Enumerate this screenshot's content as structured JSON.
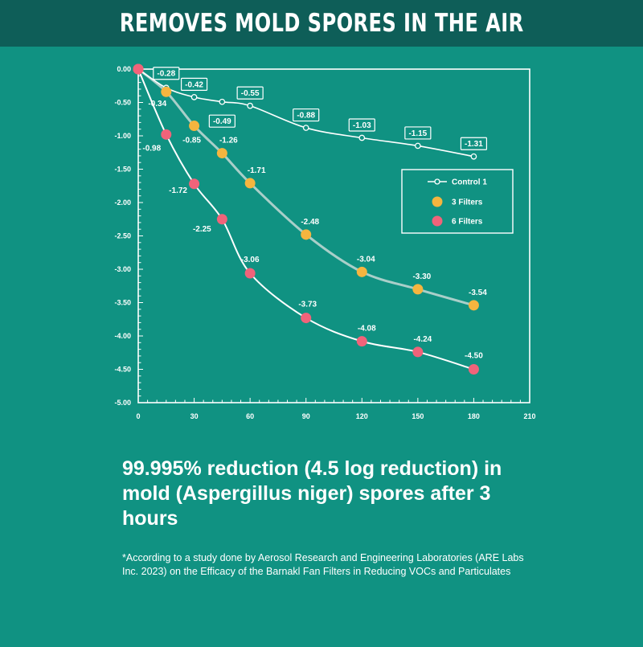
{
  "banner": {
    "title": "REMOVES MOLD SPORES IN THE AIR"
  },
  "chart_data": {
    "type": "line",
    "title": "",
    "xlabel": "",
    "ylabel": "",
    "xlim": [
      0,
      210
    ],
    "ylim": [
      -5.0,
      0.0
    ],
    "x_ticks": [
      0,
      30,
      60,
      90,
      120,
      150,
      180,
      210
    ],
    "y_ticks": [
      0.0,
      -0.5,
      -1.0,
      -1.5,
      -2.0,
      -2.5,
      -3.0,
      -3.5,
      -4.0,
      -4.5,
      -5.0
    ],
    "y_tick_labels": [
      "0.00",
      "-0.50",
      "-1.00",
      "-1.50",
      "-2.00",
      "-2.50",
      "-3.00",
      "-3.50",
      "-4.00",
      "-4.50",
      "-5.00"
    ],
    "legend_position": "right",
    "series": [
      {
        "name": "Control 1",
        "color": "#ffffff",
        "marker": "open-circle",
        "x": [
          0,
          15,
          30,
          45,
          60,
          90,
          120,
          150,
          180
        ],
        "y": [
          0.0,
          -0.28,
          -0.42,
          -0.49,
          -0.55,
          -0.88,
          -1.03,
          -1.15,
          -1.31
        ],
        "labels": [
          "",
          "-0.28",
          "-0.42",
          "-0.49",
          "-0.55",
          "-0.88",
          "-1.03",
          "-1.15",
          "-1.31"
        ]
      },
      {
        "name": "3 Filters",
        "color": "#f5b53f",
        "marker": "filled-circle",
        "x": [
          0,
          15,
          30,
          45,
          60,
          90,
          120,
          150,
          180
        ],
        "y": [
          0.0,
          -0.34,
          -0.85,
          -1.26,
          -1.71,
          -2.48,
          -3.04,
          -3.3,
          -3.54
        ],
        "labels": [
          "",
          "-0.34",
          "-0.85",
          "-1.26",
          "-1.71",
          "-2.48",
          "-3.04",
          "-3.30",
          "-3.54"
        ]
      },
      {
        "name": "6 Filters",
        "color": "#f0637a",
        "marker": "filled-circle",
        "x": [
          0,
          15,
          30,
          45,
          60,
          90,
          120,
          150,
          180
        ],
        "y": [
          0.0,
          -0.98,
          -1.72,
          -2.25,
          -3.06,
          -3.73,
          -4.08,
          -4.24,
          -4.5
        ],
        "labels": [
          "",
          "-0.98",
          "-1.72",
          "-2.25",
          "-3.06",
          "-3.73",
          "-4.08",
          "-4.24",
          "-4.50"
        ]
      }
    ]
  },
  "headline": {
    "text": "99.995% reduction (4.5 log reduction) in mold (Aspergillus niger) spores after 3 hours"
  },
  "footnote": {
    "text": "*According to a study done by Aerosol Research and Engineering Laboratories (ARE Labs Inc. 2023) on the Efficacy of the Barnakl Fan Filters in Reducing VOCs and Particulates"
  },
  "colors": {
    "background": "#109282",
    "banner": "#0e5e58",
    "text": "#ffffff"
  }
}
